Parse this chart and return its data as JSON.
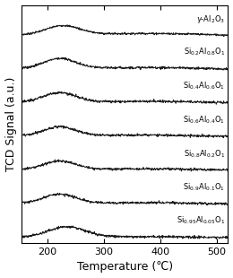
{
  "title": "",
  "xlabel": "Temperature (℃)",
  "ylabel": "TCD Signal (a.u.)",
  "xlim": [
    155,
    520
  ],
  "x_ticks": [
    200,
    300,
    400,
    500
  ],
  "labels": [
    "$\\gamma$-Al$_2$O$_3$",
    "Si$_{0.2}$Al$_{0.8}$O$_1$",
    "Si$_{0.4}$Al$_{0.6}$O$_1$",
    "Si$_{0.6}$Al$_{0.4}$O$_1$",
    "Si$_{0.8}$Al$_{0.2}$O$_1$",
    "Si$_{0.9}$Al$_{0.1}$O$_1$",
    "Si$_{0.95}$Al$_{0.05}$O$_1$"
  ],
  "offsets": [
    0.855,
    0.715,
    0.575,
    0.435,
    0.295,
    0.155,
    0.015
  ],
  "peak_temps": [
    228,
    222,
    222,
    222,
    222,
    222,
    235
  ],
  "peak_heights": [
    0.038,
    0.042,
    0.04,
    0.038,
    0.036,
    0.038,
    0.042
  ],
  "peak_widths": [
    30,
    28,
    28,
    28,
    28,
    28,
    32
  ],
  "broad_heights": [
    0.008,
    0.006,
    0.006,
    0.005,
    0.005,
    0.004,
    0.003
  ],
  "noise_scales": [
    0.002,
    0.0025,
    0.0025,
    0.0025,
    0.0025,
    0.0025,
    0.0025
  ],
  "line_color": "#111111",
  "background_color": "#ffffff",
  "label_fontsize": 6.0,
  "axis_label_fontsize": 9,
  "tick_fontsize": 8
}
